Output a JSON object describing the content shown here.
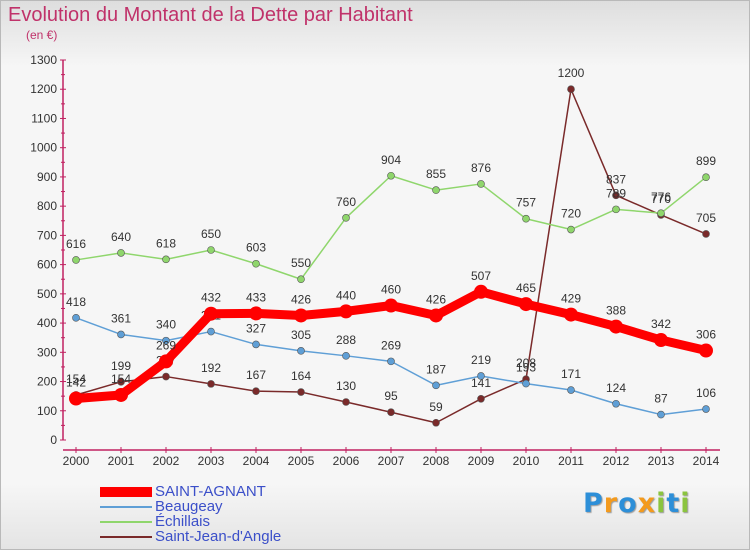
{
  "chart_data": {
    "type": "line",
    "title": "Evolution du Montant de la Dette par Habitant",
    "subtitle": "(en €)",
    "x": [
      "2000",
      "2001",
      "2002",
      "2003",
      "2004",
      "2005",
      "2006",
      "2007",
      "2008",
      "2009",
      "2010",
      "2011",
      "2012",
      "2013",
      "2014"
    ],
    "ylim": [
      0,
      1300
    ],
    "yticks": [
      0,
      100,
      200,
      300,
      400,
      500,
      600,
      700,
      800,
      900,
      1000,
      1100,
      1200,
      1300
    ],
    "grid": false,
    "legend_position": "bottom-left",
    "series": [
      {
        "name": "Saint-Jean-d'Angle",
        "color": "#7a2a2a",
        "values": [
          154,
          199,
          217,
          192,
          167,
          164,
          130,
          95,
          59,
          141,
          208,
          1200,
          837,
          770,
          705
        ]
      },
      {
        "name": "Échillais",
        "color": "#8fd66c",
        "values": [
          616,
          640,
          618,
          650,
          603,
          550,
          760,
          904,
          855,
          876,
          757,
          720,
          789,
          776,
          899
        ]
      },
      {
        "name": "Beaugeay",
        "color": "#5f9fd6",
        "values": [
          418,
          361,
          340,
          371,
          327,
          305,
          288,
          269,
          187,
          219,
          193,
          171,
          124,
          87,
          106
        ]
      },
      {
        "name": "SAINT-AGNANT",
        "color": "#ff0000",
        "values": [
          142,
          154,
          269,
          432,
          433,
          426,
          440,
          460,
          426,
          507,
          465,
          429,
          388,
          342,
          306
        ]
      }
    ]
  },
  "legend": {
    "items": [
      {
        "label": "SAINT-AGNANT",
        "color": "#ff0000",
        "thickness": 10
      },
      {
        "label": "Beaugeay",
        "color": "#5f9fd6",
        "thickness": 2
      },
      {
        "label": "Échillais",
        "color": "#8fd66c",
        "thickness": 2
      },
      {
        "label": "Saint-Jean-d'Angle",
        "color": "#7a2a2a",
        "thickness": 2
      }
    ]
  },
  "logo": {
    "letters": [
      "P",
      "r",
      "o",
      "x",
      "i",
      "t",
      "i"
    ],
    "colors": [
      "#2d8fd8",
      "#f39a1d",
      "#2d8fd8",
      "#f39a1d",
      "#8bc43f",
      "#2d8fd8",
      "#8bc43f"
    ]
  }
}
